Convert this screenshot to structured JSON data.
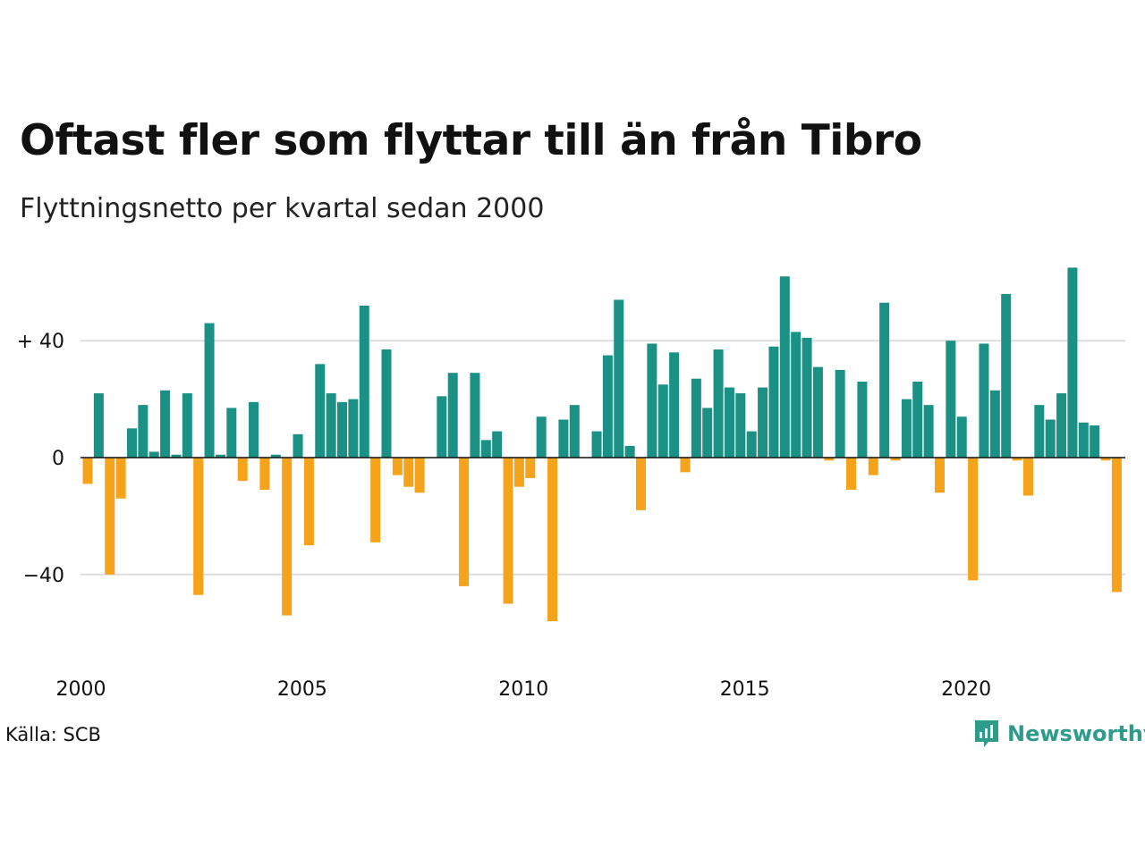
{
  "title": "Oftast fler som flyttar till än från Tibro",
  "subtitle": "Flyttningsnetto per kvartal sedan 2000",
  "source": "Källa: SCB",
  "brand": {
    "name": "Newsworthy",
    "icon": "newsworthy-logo-icon"
  },
  "colors": {
    "positive": "#1a9184",
    "negative": "#f5a31a",
    "grid": "#dddddd",
    "brand": "#2f9b8b"
  },
  "chart_data": {
    "type": "bar",
    "title": "Oftast fler som flyttar till än från Tibro",
    "subtitle": "Flyttningsnetto per kvartal sedan 2000",
    "xlabel": "",
    "ylabel": "",
    "x_start": 2000,
    "periods_per_year": 4,
    "x_tick_labels": [
      "2000",
      "2005",
      "2010",
      "2015",
      "2020"
    ],
    "y_tick_labels": [
      {
        "value": 40,
        "label": "+ 40"
      },
      {
        "value": 0,
        "label": "0"
      },
      {
        "value": -40,
        "label": "−40"
      }
    ],
    "ylim": [
      -57,
      65
    ],
    "grid": true,
    "legend": "none",
    "values": [
      -9,
      22,
      -40,
      -14,
      10,
      18,
      2,
      23,
      1,
      22,
      -47,
      46,
      1,
      17,
      -8,
      19,
      -11,
      1,
      -54,
      8,
      -30,
      32,
      22,
      19,
      20,
      52,
      -29,
      37,
      -6,
      -10,
      -12,
      0,
      21,
      29,
      -44,
      29,
      6,
      9,
      -50,
      -10,
      -7,
      14,
      -56,
      13,
      18,
      0,
      9,
      35,
      54,
      4,
      -18,
      39,
      25,
      36,
      -5,
      27,
      17,
      37,
      24,
      22,
      9,
      24,
      38,
      62,
      43,
      41,
      31,
      -1,
      30,
      -11,
      26,
      -6,
      53,
      -1,
      20,
      26,
      18,
      -12,
      40,
      14,
      -42,
      39,
      23,
      56,
      -1,
      -13,
      18,
      13,
      22,
      65,
      12,
      11,
      -1,
      -46
    ]
  }
}
